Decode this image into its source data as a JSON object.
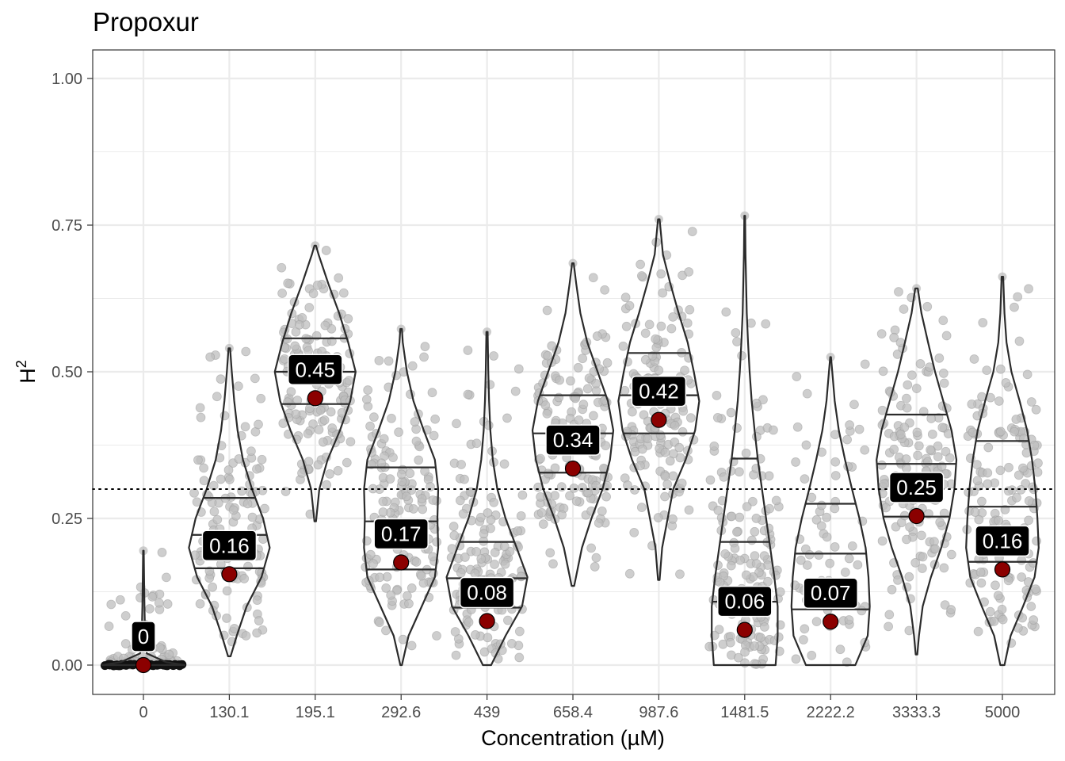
{
  "chart_data": {
    "type": "violin",
    "title": "Propoxur",
    "xlabel": "Concentration (µM)",
    "ylabel": "H",
    "ylabel_superscript": "2",
    "ylim": [
      -0.05,
      1.05
    ],
    "yticks": [
      0.0,
      0.25,
      0.5,
      0.75,
      1.0
    ],
    "ytick_labels": [
      "0.00",
      "0.25",
      "0.50",
      "0.75",
      "1.00"
    ],
    "threshold": 0.3,
    "categories": [
      "0",
      "130.1",
      "195.1",
      "292.6",
      "439",
      "658.4",
      "987.6",
      "1481.5",
      "2222.2",
      "3333.3",
      "5000"
    ],
    "medians": [
      0.0,
      0.155,
      0.455,
      0.175,
      0.075,
      0.335,
      0.418,
      0.06,
      0.074,
      0.254,
      0.163
    ],
    "median_labels": [
      "0",
      "0.16",
      "0.45",
      "0.17",
      "0.08",
      "0.34",
      "0.42",
      "0.06",
      "0.07",
      "0.25",
      "0.16"
    ],
    "violins": [
      {
        "min": 0.0,
        "max": 0.195,
        "quartiles": [],
        "n_points": 80,
        "profile": [
          [
            0.0,
            1.0
          ],
          [
            0.005,
            0.55
          ],
          [
            0.02,
            0.08
          ],
          [
            0.05,
            0.04
          ],
          [
            0.1,
            0.025
          ],
          [
            0.15,
            0.015
          ],
          [
            0.195,
            0.008
          ]
        ]
      },
      {
        "min": 0.015,
        "max": 0.54,
        "quartiles": [
          0.165,
          0.222,
          0.285
        ],
        "n_points": 140,
        "profile": [
          [
            0.015,
            0.03
          ],
          [
            0.05,
            0.18
          ],
          [
            0.1,
            0.42
          ],
          [
            0.15,
            0.78
          ],
          [
            0.2,
            0.98
          ],
          [
            0.25,
            0.82
          ],
          [
            0.3,
            0.55
          ],
          [
            0.35,
            0.33
          ],
          [
            0.4,
            0.2
          ],
          [
            0.45,
            0.12
          ],
          [
            0.5,
            0.06
          ],
          [
            0.54,
            0.02
          ]
        ]
      },
      {
        "min": 0.245,
        "max": 0.715,
        "quartiles": [
          0.445,
          0.5,
          0.557
        ],
        "n_points": 150,
        "profile": [
          [
            0.245,
            0.02
          ],
          [
            0.3,
            0.1
          ],
          [
            0.35,
            0.3
          ],
          [
            0.4,
            0.6
          ],
          [
            0.45,
            0.85
          ],
          [
            0.5,
            0.98
          ],
          [
            0.55,
            0.8
          ],
          [
            0.6,
            0.58
          ],
          [
            0.65,
            0.32
          ],
          [
            0.7,
            0.08
          ],
          [
            0.715,
            0.02
          ]
        ]
      },
      {
        "min": 0.0,
        "max": 0.573,
        "quartiles": [
          0.163,
          0.245,
          0.337
        ],
        "n_points": 150,
        "profile": [
          [
            0.0,
            0.02
          ],
          [
            0.05,
            0.18
          ],
          [
            0.1,
            0.5
          ],
          [
            0.15,
            0.82
          ],
          [
            0.2,
            0.9
          ],
          [
            0.25,
            0.88
          ],
          [
            0.3,
            0.9
          ],
          [
            0.35,
            0.82
          ],
          [
            0.4,
            0.55
          ],
          [
            0.45,
            0.3
          ],
          [
            0.5,
            0.14
          ],
          [
            0.55,
            0.04
          ],
          [
            0.573,
            0.02
          ]
        ]
      },
      {
        "min": 0.0,
        "max": 0.568,
        "quartiles": [
          0.098,
          0.148,
          0.21
        ],
        "n_points": 150,
        "profile": [
          [
            0.0,
            0.1
          ],
          [
            0.05,
            0.45
          ],
          [
            0.1,
            0.85
          ],
          [
            0.15,
            0.98
          ],
          [
            0.2,
            0.72
          ],
          [
            0.25,
            0.45
          ],
          [
            0.3,
            0.25
          ],
          [
            0.35,
            0.14
          ],
          [
            0.4,
            0.08
          ],
          [
            0.45,
            0.05
          ],
          [
            0.5,
            0.03
          ],
          [
            0.568,
            0.015
          ]
        ]
      },
      {
        "min": 0.135,
        "max": 0.685,
        "quartiles": [
          0.328,
          0.395,
          0.46
        ],
        "n_points": 160,
        "profile": [
          [
            0.135,
            0.03
          ],
          [
            0.2,
            0.22
          ],
          [
            0.25,
            0.45
          ],
          [
            0.3,
            0.72
          ],
          [
            0.35,
            0.9
          ],
          [
            0.4,
            0.98
          ],
          [
            0.45,
            0.85
          ],
          [
            0.5,
            0.6
          ],
          [
            0.55,
            0.35
          ],
          [
            0.6,
            0.18
          ],
          [
            0.65,
            0.08
          ],
          [
            0.685,
            0.02
          ]
        ]
      },
      {
        "min": 0.145,
        "max": 0.76,
        "quartiles": [
          0.395,
          0.46,
          0.532
        ],
        "n_points": 160,
        "profile": [
          [
            0.145,
            0.02
          ],
          [
            0.2,
            0.08
          ],
          [
            0.3,
            0.35
          ],
          [
            0.35,
            0.65
          ],
          [
            0.4,
            0.88
          ],
          [
            0.45,
            0.98
          ],
          [
            0.5,
            0.85
          ],
          [
            0.55,
            0.7
          ],
          [
            0.6,
            0.48
          ],
          [
            0.65,
            0.28
          ],
          [
            0.7,
            0.1
          ],
          [
            0.76,
            0.02
          ]
        ]
      },
      {
        "min": 0.0,
        "max": 0.766,
        "quartiles": [
          0.108,
          0.21,
          0.352
        ],
        "n_points": 150,
        "profile": [
          [
            0.0,
            0.75
          ],
          [
            0.05,
            0.8
          ],
          [
            0.1,
            0.8
          ],
          [
            0.15,
            0.72
          ],
          [
            0.2,
            0.62
          ],
          [
            0.25,
            0.52
          ],
          [
            0.3,
            0.42
          ],
          [
            0.35,
            0.32
          ],
          [
            0.4,
            0.24
          ],
          [
            0.45,
            0.17
          ],
          [
            0.5,
            0.12
          ],
          [
            0.55,
            0.08
          ],
          [
            0.6,
            0.05
          ],
          [
            0.65,
            0.035
          ],
          [
            0.7,
            0.02
          ],
          [
            0.766,
            0.01
          ]
        ]
      },
      {
        "min": 0.0,
        "max": 0.525,
        "quartiles": [
          0.095,
          0.19,
          0.275
        ],
        "n_points": 70,
        "profile": [
          [
            0.0,
            0.6
          ],
          [
            0.05,
            0.9
          ],
          [
            0.1,
            0.95
          ],
          [
            0.15,
            0.92
          ],
          [
            0.2,
            0.85
          ],
          [
            0.25,
            0.7
          ],
          [
            0.3,
            0.52
          ],
          [
            0.35,
            0.35
          ],
          [
            0.4,
            0.2
          ],
          [
            0.45,
            0.1
          ],
          [
            0.5,
            0.04
          ],
          [
            0.525,
            0.01
          ]
        ]
      },
      {
        "min": 0.018,
        "max": 0.642,
        "quartiles": [
          0.253,
          0.343,
          0.427
        ],
        "n_points": 150,
        "profile": [
          [
            0.018,
            0.02
          ],
          [
            0.05,
            0.06
          ],
          [
            0.1,
            0.15
          ],
          [
            0.15,
            0.35
          ],
          [
            0.2,
            0.6
          ],
          [
            0.25,
            0.8
          ],
          [
            0.3,
            0.92
          ],
          [
            0.35,
            0.97
          ],
          [
            0.4,
            0.85
          ],
          [
            0.45,
            0.65
          ],
          [
            0.5,
            0.45
          ],
          [
            0.55,
            0.28
          ],
          [
            0.6,
            0.12
          ],
          [
            0.642,
            0.03
          ]
        ]
      },
      {
        "min": 0.0,
        "max": 0.662,
        "quartiles": [
          0.176,
          0.27,
          0.382
        ],
        "n_points": 150,
        "profile": [
          [
            0.0,
            0.05
          ],
          [
            0.05,
            0.2
          ],
          [
            0.1,
            0.5
          ],
          [
            0.15,
            0.78
          ],
          [
            0.2,
            0.88
          ],
          [
            0.25,
            0.85
          ],
          [
            0.3,
            0.8
          ],
          [
            0.35,
            0.72
          ],
          [
            0.4,
            0.6
          ],
          [
            0.45,
            0.42
          ],
          [
            0.5,
            0.22
          ],
          [
            0.55,
            0.1
          ],
          [
            0.6,
            0.05
          ],
          [
            0.662,
            0.02
          ]
        ]
      }
    ]
  }
}
